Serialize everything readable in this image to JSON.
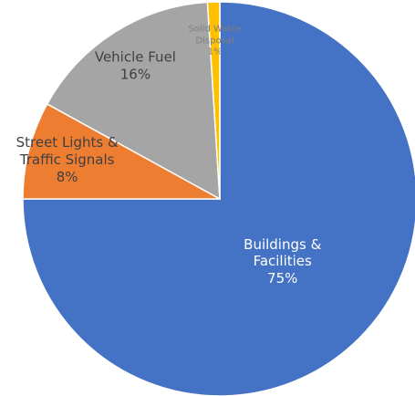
{
  "chart_data": {
    "type": "pie",
    "categories": [
      "Buildings &\nFacilities",
      "Street Lights &\nTraffic Signals",
      "Vehicle Fuel",
      "Solid Waste\nDisposal"
    ],
    "values": [
      75,
      8,
      16,
      1
    ],
    "value_labels": [
      "75%",
      "8%",
      "16%",
      "1%"
    ],
    "colors": [
      "#4472c4",
      "#ed7d31",
      "#a5a5a5",
      "#ffc000"
    ]
  }
}
